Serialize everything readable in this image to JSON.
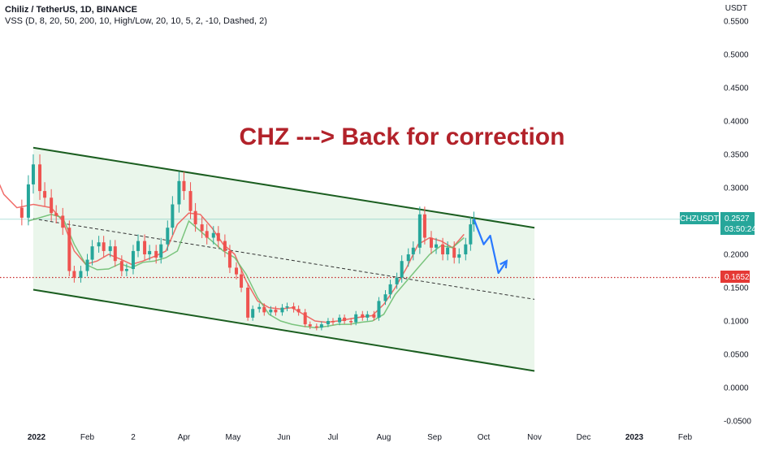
{
  "header": {
    "title": "Chiliz / TetherUS, 1D, BINANCE",
    "indicator": "VSS (D, 8, 20, 50, 200, 10, High/Low, 20, 10, 5, 2, -10, Dashed, 2)"
  },
  "currency": "USDT",
  "annotation": {
    "text": "CHZ ---> Back for correction",
    "color": "#b2222a"
  },
  "price_tags": {
    "symbol": "CHZUSDT",
    "last_price": "0.2527",
    "countdown": "03:50:24",
    "level_price": "0.1652"
  },
  "colors": {
    "up": "#26a69a",
    "down": "#ef5350",
    "channel": "#1b5e20",
    "channel_fill": "#e8f5e9",
    "level": "#c62828",
    "projection": "#2979ff",
    "tag_bg": "#26a69a"
  },
  "chart_data": {
    "type": "candlestick",
    "symbol": "CHZUSDT",
    "y_axis": {
      "ticks": [
        "0.5500",
        "0.5000",
        "0.4500",
        "0.4000",
        "0.3500",
        "0.3000",
        "0.2500",
        "0.2000",
        "0.1500",
        "0.1000",
        "0.0500",
        "0.0000",
        "-0.0500"
      ]
    },
    "x_axis": {
      "ticks": [
        "2022",
        "Feb",
        "2",
        "Apr",
        "May",
        "Jun",
        "Jul",
        "Aug",
        "Sep",
        "Oct",
        "Nov",
        "Dec",
        "2023",
        "Feb"
      ],
      "bold": [
        "2022",
        "2023"
      ]
    },
    "close_series": [
      [
        "2021-12-20",
        0.27
      ],
      [
        "2021-12-23",
        0.255
      ],
      [
        "2021-12-27",
        0.305
      ],
      [
        "2021-12-30",
        0.335
      ],
      [
        "2022-01-03",
        0.295
      ],
      [
        "2022-01-06",
        0.285
      ],
      [
        "2022-01-10",
        0.262
      ],
      [
        "2022-01-13",
        0.258
      ],
      [
        "2022-01-17",
        0.24
      ],
      [
        "2022-01-21",
        0.175
      ],
      [
        "2022-01-24",
        0.165
      ],
      [
        "2022-01-28",
        0.175
      ],
      [
        "2022-02-01",
        0.192
      ],
      [
        "2022-02-04",
        0.212
      ],
      [
        "2022-02-08",
        0.218
      ],
      [
        "2022-02-11",
        0.205
      ],
      [
        "2022-02-15",
        0.212
      ],
      [
        "2022-02-18",
        0.19
      ],
      [
        "2022-02-22",
        0.175
      ],
      [
        "2022-02-25",
        0.178
      ],
      [
        "2022-03-01",
        0.205
      ],
      [
        "2022-03-04",
        0.22
      ],
      [
        "2022-03-08",
        0.2
      ],
      [
        "2022-03-11",
        0.205
      ],
      [
        "2022-03-15",
        0.195
      ],
      [
        "2022-03-18",
        0.215
      ],
      [
        "2022-03-22",
        0.24
      ],
      [
        "2022-03-25",
        0.275
      ],
      [
        "2022-03-29",
        0.31
      ],
      [
        "2022-04-01",
        0.295
      ],
      [
        "2022-04-05",
        0.265
      ],
      [
        "2022-04-08",
        0.245
      ],
      [
        "2022-04-12",
        0.235
      ],
      [
        "2022-04-15",
        0.225
      ],
      [
        "2022-04-19",
        0.232
      ],
      [
        "2022-04-22",
        0.22
      ],
      [
        "2022-04-26",
        0.205
      ],
      [
        "2022-04-29",
        0.18
      ],
      [
        "2022-05-03",
        0.17
      ],
      [
        "2022-05-06",
        0.15
      ],
      [
        "2022-05-10",
        0.105
      ],
      [
        "2022-05-13",
        0.118
      ],
      [
        "2022-05-17",
        0.121
      ],
      [
        "2022-05-20",
        0.113
      ],
      [
        "2022-05-24",
        0.117
      ],
      [
        "2022-05-27",
        0.113
      ],
      [
        "2022-05-31",
        0.12
      ],
      [
        "2022-06-03",
        0.122
      ],
      [
        "2022-06-07",
        0.118
      ],
      [
        "2022-06-10",
        0.113
      ],
      [
        "2022-06-14",
        0.095
      ],
      [
        "2022-06-17",
        0.092
      ],
      [
        "2022-06-21",
        0.09
      ],
      [
        "2022-06-24",
        0.095
      ],
      [
        "2022-06-28",
        0.1
      ],
      [
        "2022-07-01",
        0.098
      ],
      [
        "2022-07-05",
        0.105
      ],
      [
        "2022-07-08",
        0.1
      ],
      [
        "2022-07-12",
        0.098
      ],
      [
        "2022-07-15",
        0.11
      ],
      [
        "2022-07-19",
        0.105
      ],
      [
        "2022-07-22",
        0.11
      ],
      [
        "2022-07-26",
        0.105
      ],
      [
        "2022-07-29",
        0.13
      ],
      [
        "2022-08-02",
        0.14
      ],
      [
        "2022-08-05",
        0.155
      ],
      [
        "2022-08-09",
        0.165
      ],
      [
        "2022-08-12",
        0.19
      ],
      [
        "2022-08-16",
        0.2
      ],
      [
        "2022-08-19",
        0.21
      ],
      [
        "2022-08-23",
        0.26
      ],
      [
        "2022-08-26",
        0.225
      ],
      [
        "2022-08-30",
        0.21
      ],
      [
        "2022-09-02",
        0.215
      ],
      [
        "2022-09-06",
        0.2
      ],
      [
        "2022-09-09",
        0.21
      ],
      [
        "2022-09-13",
        0.195
      ],
      [
        "2022-09-16",
        0.2
      ],
      [
        "2022-09-20",
        0.215
      ],
      [
        "2022-09-23",
        0.245
      ],
      [
        "2022-09-25",
        0.2527
      ]
    ],
    "moving_averages": [
      {
        "color": "#ef5350",
        "points": [
          [
            "2021-11-20",
            0.45
          ],
          [
            "2021-11-27",
            0.4
          ],
          [
            "2021-12-05",
            0.33
          ],
          [
            "2021-12-12",
            0.29
          ],
          [
            "2021-12-20",
            0.27
          ],
          [
            "2021-12-30",
            0.275
          ],
          [
            "2022-01-10",
            0.27
          ],
          [
            "2022-01-17",
            0.25
          ],
          [
            "2022-01-24",
            0.205
          ],
          [
            "2022-01-31",
            0.185
          ],
          [
            "2022-02-07",
            0.19
          ],
          [
            "2022-02-14",
            0.2
          ],
          [
            "2022-02-21",
            0.193
          ],
          [
            "2022-02-28",
            0.185
          ],
          [
            "2022-03-07",
            0.19
          ],
          [
            "2022-03-14",
            0.197
          ],
          [
            "2022-03-21",
            0.205
          ],
          [
            "2022-03-28",
            0.245
          ],
          [
            "2022-04-04",
            0.262
          ],
          [
            "2022-04-11",
            0.26
          ],
          [
            "2022-04-18",
            0.24
          ],
          [
            "2022-04-25",
            0.215
          ],
          [
            "2022-05-02",
            0.2
          ],
          [
            "2022-05-09",
            0.16
          ],
          [
            "2022-05-16",
            0.13
          ],
          [
            "2022-05-23",
            0.12
          ],
          [
            "2022-05-30",
            0.118
          ],
          [
            "2022-06-06",
            0.12
          ],
          [
            "2022-06-13",
            0.11
          ],
          [
            "2022-06-20",
            0.1
          ],
          [
            "2022-06-27",
            0.098
          ],
          [
            "2022-07-04",
            0.1
          ],
          [
            "2022-07-11",
            0.103
          ],
          [
            "2022-07-18",
            0.106
          ],
          [
            "2022-07-25",
            0.108
          ],
          [
            "2022-08-01",
            0.125
          ],
          [
            "2022-08-08",
            0.15
          ],
          [
            "2022-08-15",
            0.18
          ],
          [
            "2022-08-22",
            0.215
          ],
          [
            "2022-08-29",
            0.225
          ],
          [
            "2022-09-05",
            0.22
          ],
          [
            "2022-09-12",
            0.21
          ],
          [
            "2022-09-19",
            0.23
          ]
        ]
      },
      {
        "color": "#66bb6a",
        "points": [
          [
            "2021-12-27",
            0.25
          ],
          [
            "2022-01-03",
            0.255
          ],
          [
            "2022-01-10",
            0.26
          ],
          [
            "2022-01-17",
            0.255
          ],
          [
            "2022-01-24",
            0.215
          ],
          [
            "2022-01-31",
            0.185
          ],
          [
            "2022-02-07",
            0.177
          ],
          [
            "2022-02-14",
            0.178
          ],
          [
            "2022-02-21",
            0.186
          ],
          [
            "2022-02-28",
            0.18
          ],
          [
            "2022-03-07",
            0.188
          ],
          [
            "2022-03-14",
            0.19
          ],
          [
            "2022-03-21",
            0.195
          ],
          [
            "2022-03-28",
            0.205
          ],
          [
            "2022-04-04",
            0.25
          ],
          [
            "2022-04-11",
            0.235
          ],
          [
            "2022-04-18",
            0.22
          ],
          [
            "2022-04-25",
            0.205
          ],
          [
            "2022-05-02",
            0.195
          ],
          [
            "2022-05-09",
            0.17
          ],
          [
            "2022-05-16",
            0.135
          ],
          [
            "2022-05-23",
            0.11
          ],
          [
            "2022-05-30",
            0.1
          ],
          [
            "2022-06-06",
            0.095
          ],
          [
            "2022-06-13",
            0.092
          ],
          [
            "2022-06-20",
            0.09
          ],
          [
            "2022-06-27",
            0.092
          ],
          [
            "2022-07-04",
            0.095
          ],
          [
            "2022-07-11",
            0.095
          ],
          [
            "2022-07-18",
            0.098
          ],
          [
            "2022-07-25",
            0.1
          ],
          [
            "2022-08-01",
            0.11
          ],
          [
            "2022-08-08",
            0.14
          ],
          [
            "2022-08-15",
            0.16
          ],
          [
            "2022-08-22",
            0.18
          ],
          [
            "2022-08-29",
            0.2
          ],
          [
            "2022-09-05",
            0.213
          ],
          [
            "2022-09-12",
            0.21
          ],
          [
            "2022-09-19",
            0.225
          ]
        ]
      }
    ],
    "channel": {
      "upper": [
        [
          "2021-12-30",
          0.36
        ],
        [
          "2022-11-01",
          0.24
        ]
      ],
      "lower": [
        [
          "2021-12-30",
          0.147
        ],
        [
          "2022-11-01",
          0.025
        ]
      ],
      "mid": [
        [
          "2021-12-30",
          0.2535
        ],
        [
          "2022-11-01",
          0.1325
        ]
      ]
    },
    "levels": [
      0.1652,
      0.2527
    ],
    "projection": [
      [
        "2022-09-25",
        0.253
      ],
      [
        "2022-10-01",
        0.215
      ],
      [
        "2022-10-05",
        0.228
      ],
      [
        "2022-10-10",
        0.172
      ],
      [
        "2022-10-15",
        0.19
      ]
    ]
  }
}
